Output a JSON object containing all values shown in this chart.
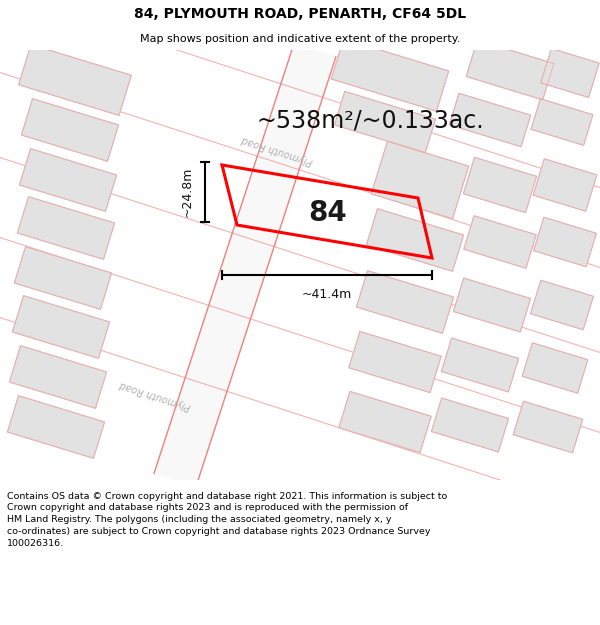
{
  "title": "84, PLYMOUTH ROAD, PENARTH, CF64 5DL",
  "subtitle": "Map shows position and indicative extent of the property.",
  "footer_line1": "Contains OS data © Crown copyright and database right 2021. This information is subject to",
  "footer_line2": "Crown copyright and database rights 2023 and is reproduced with the permission of",
  "footer_line3": "HM Land Registry. The polygons (including the associated geometry, namely x, y",
  "footer_line4": "co-ordinates) are subject to Crown copyright and database rights 2023 Ordnance Survey",
  "footer_line5": "100026316.",
  "area_label": "~538m²/~0.133ac.",
  "width_label": "~41.4m",
  "height_label": "~24.8m",
  "plot_number": "84",
  "road_label_top": "Plymouth Road",
  "road_label_bot": "Plymouth Road",
  "map_bg": "#efefef",
  "plot_outline_color": "#ff0000",
  "building_fill": "#e2e2e2",
  "building_edge_gray": "#cccccc",
  "building_edge_pink": "#f5aaaa",
  "road_fill": "#f8f8f8",
  "road_edge": "#f08080"
}
